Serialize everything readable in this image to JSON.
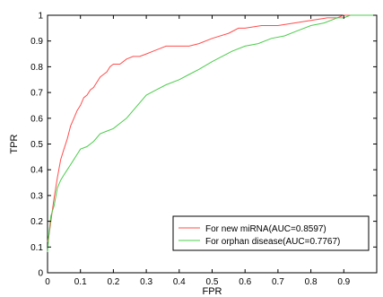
{
  "chart_data": {
    "type": "line",
    "title": "",
    "xlabel": "FPR",
    "ylabel": "TPR",
    "xlim": [
      0,
      1
    ],
    "ylim": [
      0,
      1
    ],
    "xticks": [
      "0",
      "0.1",
      "0.2",
      "0.3",
      "0.4",
      "0.5",
      "0.6",
      "0.7",
      "0.8",
      "0.9"
    ],
    "yticks": [
      "0",
      "0.1",
      "0.2",
      "0.3",
      "0.4",
      "0.5",
      "0.6",
      "0.7",
      "0.8",
      "0.9",
      "1"
    ],
    "grid": false,
    "legend_position": "bottom-right",
    "series": [
      {
        "name": "For new miRNA(AUC=0.8597)",
        "color": "#ff4d4d",
        "x": [
          0,
          0.005,
          0.01,
          0.02,
          0.03,
          0.04,
          0.05,
          0.06,
          0.07,
          0.08,
          0.09,
          0.1,
          0.11,
          0.12,
          0.13,
          0.14,
          0.15,
          0.16,
          0.17,
          0.18,
          0.19,
          0.2,
          0.22,
          0.24,
          0.26,
          0.28,
          0.3,
          0.32,
          0.34,
          0.36,
          0.38,
          0.4,
          0.43,
          0.46,
          0.5,
          0.55,
          0.58,
          0.6,
          0.65,
          0.7,
          0.75,
          0.8,
          0.85,
          0.88,
          0.9,
          0.92,
          0.95,
          1.0
        ],
        "y": [
          0.12,
          0.15,
          0.2,
          0.29,
          0.37,
          0.44,
          0.48,
          0.52,
          0.57,
          0.6,
          0.63,
          0.65,
          0.68,
          0.69,
          0.71,
          0.72,
          0.74,
          0.76,
          0.77,
          0.78,
          0.8,
          0.81,
          0.81,
          0.83,
          0.84,
          0.84,
          0.85,
          0.86,
          0.87,
          0.88,
          0.88,
          0.88,
          0.88,
          0.89,
          0.91,
          0.93,
          0.95,
          0.95,
          0.96,
          0.96,
          0.97,
          0.98,
          0.99,
          0.99,
          1.0,
          1.0,
          1.0,
          1.0
        ]
      },
      {
        "name": "For orphan disease(AUC=0.7767)",
        "color": "#4dcc4d",
        "x": [
          0,
          0.005,
          0.01,
          0.02,
          0.03,
          0.04,
          0.05,
          0.06,
          0.07,
          0.08,
          0.09,
          0.1,
          0.12,
          0.14,
          0.16,
          0.18,
          0.2,
          0.22,
          0.24,
          0.26,
          0.28,
          0.3,
          0.33,
          0.36,
          0.4,
          0.43,
          0.46,
          0.5,
          0.53,
          0.56,
          0.6,
          0.64,
          0.68,
          0.72,
          0.76,
          0.8,
          0.84,
          0.88,
          0.9,
          0.92,
          0.95,
          1.0
        ],
        "y": [
          0.08,
          0.16,
          0.22,
          0.26,
          0.33,
          0.36,
          0.38,
          0.4,
          0.42,
          0.44,
          0.46,
          0.48,
          0.49,
          0.51,
          0.54,
          0.55,
          0.56,
          0.58,
          0.6,
          0.63,
          0.66,
          0.69,
          0.71,
          0.73,
          0.75,
          0.77,
          0.79,
          0.82,
          0.84,
          0.86,
          0.88,
          0.89,
          0.91,
          0.92,
          0.94,
          0.96,
          0.97,
          0.99,
          0.99,
          1.0,
          1.0,
          1.0
        ]
      }
    ]
  }
}
